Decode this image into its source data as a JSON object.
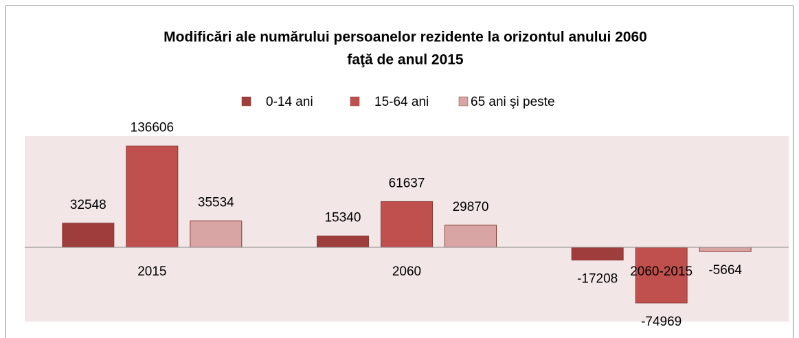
{
  "chart_data": {
    "type": "bar",
    "title": [
      "Modificări ale numărului persoanelor rezidente la orizontul  anului 2060",
      "faţă de anul  2015"
    ],
    "categories": [
      "2015",
      "2060",
      "2060-2015"
    ],
    "series": [
      {
        "name": "0-14 ani",
        "color": "#9e3d3b",
        "values": [
          32548,
          15340,
          -17208
        ]
      },
      {
        "name": "15-64 ani",
        "color": "#c0504d",
        "values": [
          136606,
          61637,
          -74969
        ]
      },
      {
        "name": "65 ani şi peste",
        "color": "#d9a5a4",
        "values": [
          35534,
          29870,
          -5664
        ]
      }
    ],
    "ylim": [
      -100000,
      150000
    ],
    "legend": "top"
  }
}
